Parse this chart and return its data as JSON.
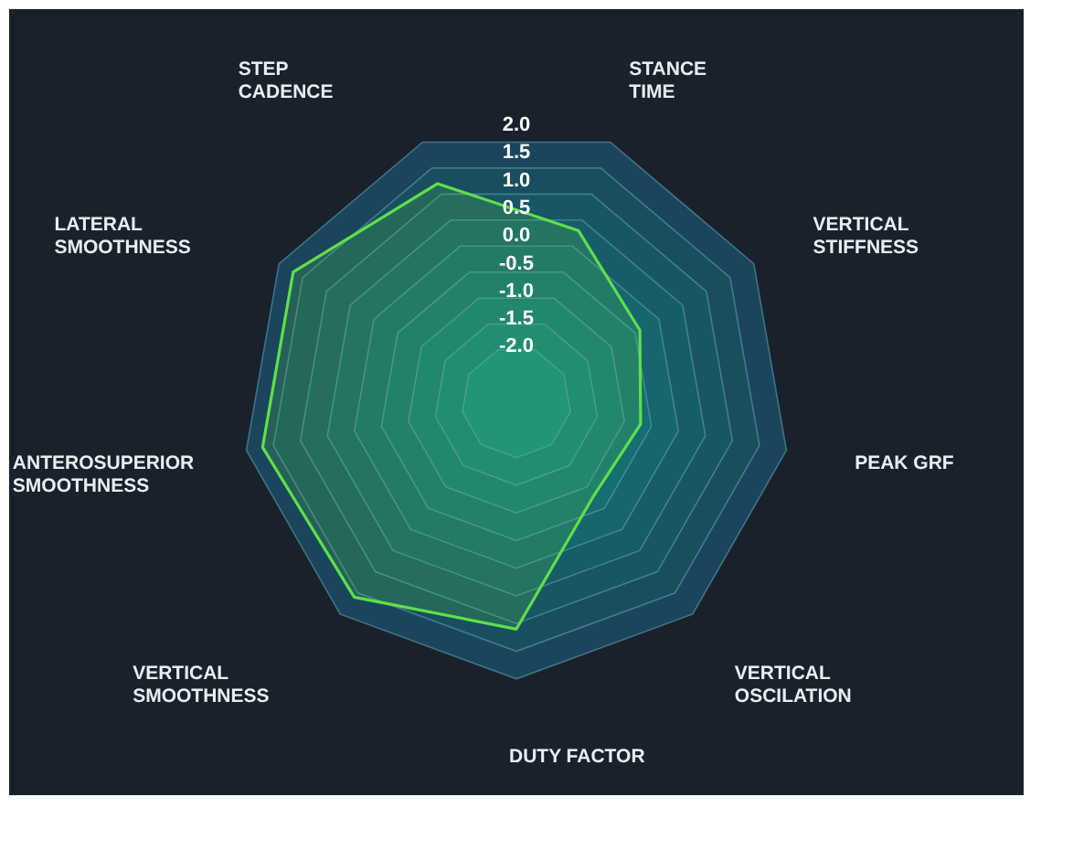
{
  "chart_data": {
    "type": "radar",
    "categories": [
      "STANCE\nTIME",
      "VERTICAL\nSTIFFNESS",
      "PEAK GRF",
      "VERTICAL\nOSCILATION",
      "DUTY FACTOR",
      "VERTICAL\nSMOOTHNESS",
      "ANTEROSUPERIOR\nSMOOTHNESS",
      "LATERAL\nSMOOTHNESS",
      "STEP\nCADENCE"
    ],
    "series": [
      {
        "color": "#5ee04a",
        "values": [
          0.3,
          -0.4,
          -0.7,
          -0.8,
          1.1,
          1.6,
          1.7,
          1.7,
          1.2
        ]
      }
    ],
    "ylim": [
      -3,
      2
    ],
    "yticks": [
      {
        "value": 2,
        "label": "2.0"
      },
      {
        "value": 1.5,
        "label": "1.5"
      },
      {
        "value": 1,
        "label": "1.0"
      },
      {
        "value": 0.5,
        "label": "0.5"
      },
      {
        "value": 0,
        "label": "0.0"
      },
      {
        "value": -0.5,
        "label": "-0.5"
      },
      {
        "value": -1,
        "label": "-1.0"
      },
      {
        "value": -1.5,
        "label": "-1.5"
      },
      {
        "value": -2,
        "label": "-2.0"
      }
    ],
    "grid": true
  }
}
